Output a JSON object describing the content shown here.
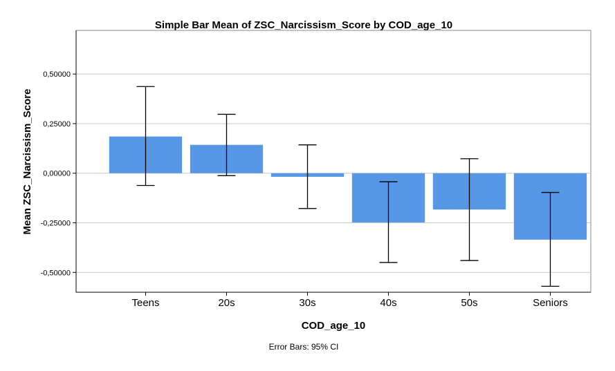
{
  "chart_data": {
    "type": "bar",
    "title": "Simple Bar Mean of ZSC_Narcissism_Score by COD_age_10",
    "xlabel": "COD_age_10",
    "ylabel": "Mean ZSC_Narcissism_Score",
    "footnote": "Error Bars: 95% CI",
    "categories": [
      "Teens",
      "20s",
      "30s",
      "40s",
      "50s",
      "Seniors"
    ],
    "values": [
      0.185,
      0.143,
      -0.018,
      -0.248,
      -0.183,
      -0.335
    ],
    "ci_lower": [
      -0.062,
      -0.012,
      -0.178,
      -0.45,
      -0.44,
      -0.57
    ],
    "ci_upper": [
      0.437,
      0.297,
      0.143,
      -0.043,
      0.073,
      -0.097
    ],
    "ylim": [
      -0.6,
      0.72
    ],
    "yticks": [
      0.5,
      0.25,
      0.0,
      -0.25,
      -0.5
    ],
    "ytick_labels": [
      "0,50000",
      "0,25000",
      "0,00000",
      "-0,25000",
      "-0,50000"
    ],
    "grid": true,
    "bar_color": "#5697e6"
  }
}
